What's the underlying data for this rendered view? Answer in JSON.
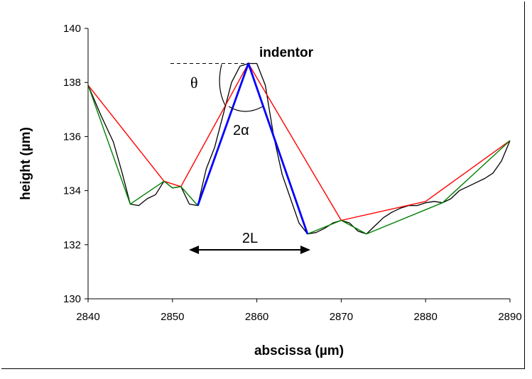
{
  "chart_data": {
    "type": "line",
    "xlabel": "abscissa (µm)",
    "ylabel": "height (µm)",
    "xlim": [
      2840,
      2890
    ],
    "ylim": [
      130,
      140
    ],
    "xticks": [
      2840,
      2850,
      2860,
      2870,
      2880,
      2890
    ],
    "yticks": [
      130,
      132,
      134,
      136,
      138,
      140
    ],
    "grid": false,
    "annotations": {
      "indentor": "indentor",
      "theta": "θ",
      "two_alpha": "2α",
      "two_L": "2L"
    },
    "colors": {
      "profile": "#000000",
      "red": "#ff0000",
      "green": "#008000",
      "blue": "#0000ff"
    },
    "series": [
      {
        "color": "#000000",
        "x": [
          2840,
          2841.5,
          2843,
          2844,
          2845,
          2846,
          2847,
          2848,
          2849,
          2850,
          2851,
          2852,
          2853,
          2854,
          2855,
          2856,
          2857,
          2858,
          2859,
          2860,
          2861,
          2862,
          2863,
          2864,
          2865,
          2866,
          2867,
          2868,
          2869,
          2870,
          2871,
          2872,
          2873,
          2874,
          2875,
          2876,
          2877,
          2878,
          2879,
          2880,
          2881,
          2882,
          2883,
          2884,
          2885,
          2886,
          2887,
          2888,
          2889,
          2890
        ],
        "y": [
          137.9,
          136.8,
          135.8,
          134.7,
          133.5,
          133.45,
          133.7,
          133.85,
          134.35,
          134.1,
          134.15,
          133.5,
          133.45,
          134.8,
          135.6,
          136.8,
          138.0,
          138.6,
          138.7,
          138.7,
          137.9,
          136.0,
          134.6,
          133.7,
          132.8,
          132.4,
          132.45,
          132.6,
          132.8,
          132.9,
          132.8,
          132.5,
          132.4,
          132.7,
          133.0,
          133.2,
          133.35,
          133.45,
          133.45,
          133.55,
          133.6,
          133.55,
          133.7,
          134.0,
          134.15,
          134.3,
          134.45,
          134.65,
          135.1,
          135.85
        ]
      },
      {
        "color": "#ff0000",
        "x": [
          2840,
          2849,
          2851,
          2859,
          2870,
          2880,
          2890
        ],
        "y": [
          137.9,
          134.35,
          134.15,
          138.7,
          132.9,
          133.6,
          135.85
        ]
      },
      {
        "color": "#008000",
        "x": [
          2840,
          2845,
          2849,
          2850,
          2851,
          2853,
          2859,
          2866,
          2870,
          2873,
          2882,
          2890
        ],
        "y": [
          137.9,
          133.5,
          134.35,
          134.1,
          134.15,
          133.45,
          138.7,
          132.4,
          132.9,
          132.4,
          133.55,
          135.85
        ]
      },
      {
        "color": "#0000ff",
        "x": [
          2853,
          2859,
          2866
        ],
        "y": [
          133.45,
          138.7,
          132.4
        ]
      }
    ]
  }
}
